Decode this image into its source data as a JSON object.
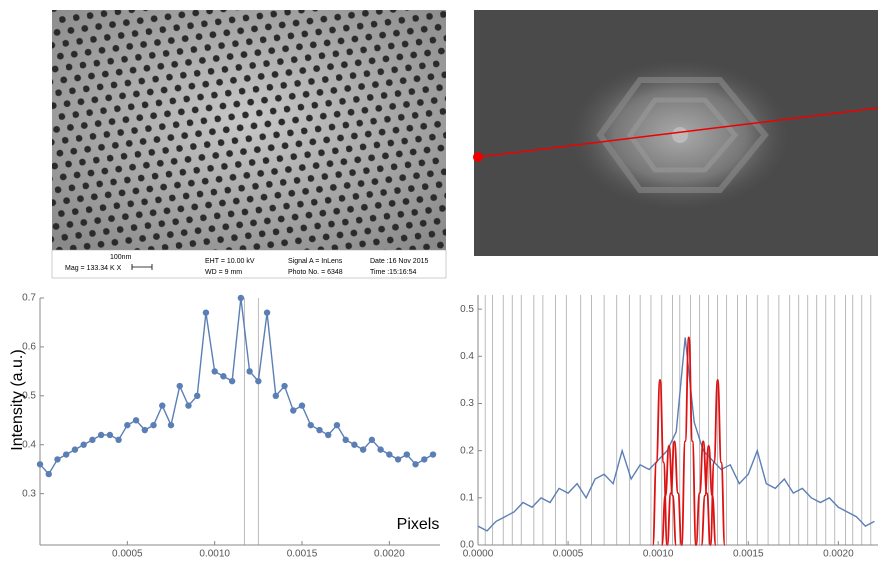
{
  "sem_info": {
    "mag": "Mag = 133.34 K X",
    "scale": "100nm",
    "eht": "EHT = 10.00 kV",
    "wd": "WD =  9 mm",
    "signal": "Signal A = InLens",
    "photo": "Photo No. = 6348",
    "date": "Date :16 Nov 2015",
    "time": "Time :15:16:54"
  },
  "chart_data": [
    {
      "type": "line",
      "y_label": "Intensity (a.u.)",
      "x_label": "Pixels",
      "markers": true,
      "xlim": [
        0,
        0.00229
      ],
      "ylim": [
        0.195,
        0.7
      ],
      "xticks": [
        0.0005,
        {
          "value": 0.001,
          "label": "0.0010"
        },
        0.0015,
        {
          "value": 0.002,
          "label": "0.0020"
        }
      ],
      "yticks": [
        0.3,
        0.4,
        0.5,
        0.6,
        0.7
      ],
      "vlines": [
        0.00117,
        0.00125
      ],
      "x": [
        0,
        5e-05,
        0.0001,
        0.00015,
        0.0002,
        0.00025,
        0.0003,
        0.00035,
        0.0004,
        0.00045,
        0.0005,
        0.00055,
        0.0006,
        0.00065,
        0.0007,
        0.00075,
        0.0008,
        0.00085,
        0.0009,
        0.00095,
        0.001,
        0.00105,
        0.0011,
        0.00115,
        0.0012,
        0.00125,
        0.0013,
        0.00135,
        0.0014,
        0.00145,
        0.0015,
        0.00155,
        0.0016,
        0.00165,
        0.0017,
        0.00175,
        0.0018,
        0.00185,
        0.0019,
        0.00195,
        0.002,
        0.00205,
        0.0021,
        0.00215,
        0.0022,
        0.00225
      ],
      "series": [
        {
          "color": "#5b7fb5",
          "values": [
            0.36,
            0.34,
            0.37,
            0.38,
            0.39,
            0.4,
            0.41,
            0.42,
            0.42,
            0.41,
            0.44,
            0.45,
            0.43,
            0.44,
            0.48,
            0.44,
            0.52,
            0.48,
            0.5,
            0.67,
            0.55,
            0.54,
            0.53,
            0.7,
            0.55,
            0.53,
            0.67,
            0.5,
            0.52,
            0.47,
            0.48,
            0.44,
            0.43,
            0.42,
            0.44,
            0.41,
            0.4,
            0.39,
            0.41,
            0.39,
            0.38,
            0.37,
            0.38,
            0.36,
            0.37,
            0.38
          ]
        }
      ]
    },
    {
      "type": "line",
      "markers": false,
      "xlim": [
        0,
        0.00222
      ],
      "ylim": [
        0,
        0.53
      ],
      "xticks": [
        {
          "value": 0,
          "label": "0.0000"
        },
        0.0005,
        {
          "value": 0.001,
          "label": "0.0010"
        },
        0.0015,
        {
          "value": 0.002,
          "label": "0.0020"
        }
      ],
      "yticks": [
        {
          "value": 0,
          "label": "0.0"
        },
        0.1,
        0.2,
        0.3,
        0.4,
        0.5
      ],
      "vlines": [
        4e-05,
        8e-05,
        0.00014,
        0.00019,
        0.00024,
        0.00031,
        0.00036,
        0.00043,
        0.00049,
        0.00057,
        0.00063,
        0.0007,
        0.00077,
        0.00084,
        0.0009,
        0.00096,
        0.00102,
        0.00108,
        0.00112,
        0.00118,
        0.00123,
        0.00128,
        0.00133,
        0.00138,
        0.00144,
        0.00149,
        0.00155,
        0.00161,
        0.00167,
        0.00173,
        0.00178,
        0.00183,
        0.00188,
        0.00193,
        0.00198,
        0.00204,
        0.00208,
        0.00213,
        0.00218
      ],
      "x": [
        0,
        5e-05,
        0.0001,
        0.00015,
        0.0002,
        0.00025,
        0.0003,
        0.00035,
        0.0004,
        0.00045,
        0.0005,
        0.00055,
        0.0006,
        0.00065,
        0.0007,
        0.00075,
        0.0008,
        0.00085,
        0.0009,
        0.00095,
        0.001,
        0.00105,
        0.0011,
        0.00115,
        0.0012,
        0.00125,
        0.0013,
        0.00135,
        0.0014,
        0.00145,
        0.0015,
        0.00155,
        0.0016,
        0.00165,
        0.0017,
        0.00175,
        0.0018,
        0.00185,
        0.0019,
        0.00195,
        0.002,
        0.00205,
        0.0021,
        0.00215,
        0.0022
      ],
      "series": [
        {
          "color": "#5b7fb5",
          "values": [
            0.04,
            0.03,
            0.05,
            0.06,
            0.07,
            0.09,
            0.08,
            0.1,
            0.09,
            0.12,
            0.11,
            0.13,
            0.1,
            0.14,
            0.15,
            0.13,
            0.2,
            0.14,
            0.17,
            0.16,
            0.18,
            0.2,
            0.24,
            0.44,
            0.26,
            0.2,
            0.18,
            0.16,
            0.17,
            0.13,
            0.15,
            0.2,
            0.13,
            0.12,
            0.14,
            0.11,
            0.12,
            0.1,
            0.09,
            0.1,
            0.08,
            0.07,
            0.06,
            0.04,
            0.05
          ]
        }
      ],
      "peaks": [
        {
          "color": "#dd1111",
          "x": [
            0.00097,
            0.00099,
            0.00101,
            0.00103,
            0.00105
          ],
          "values": [
            0,
            0.175,
            0.35,
            0.175,
            0
          ]
        },
        {
          "color": "#dd1111",
          "x": [
            0.00102,
            0.00104,
            0.00106,
            0.00108,
            0.0011
          ],
          "values": [
            0,
            0.105,
            0.21,
            0.105,
            0
          ]
        },
        {
          "color": "#dd1111",
          "x": [
            0.00105,
            0.00107,
            0.00109,
            0.00111,
            0.00113
          ],
          "values": [
            0,
            0.11,
            0.22,
            0.11,
            0
          ]
        },
        {
          "color": "#dd1111",
          "x": [
            0.00113,
            0.00115,
            0.00117,
            0.00119,
            0.00121
          ],
          "values": [
            0,
            0.22,
            0.44,
            0.22,
            0
          ]
        },
        {
          "color": "#dd1111",
          "x": [
            0.00121,
            0.00123,
            0.00125,
            0.00127,
            0.00129
          ],
          "values": [
            0,
            0.11,
            0.22,
            0.11,
            0
          ]
        },
        {
          "color": "#dd1111",
          "x": [
            0.00124,
            0.00126,
            0.00128,
            0.0013,
            0.00132
          ],
          "values": [
            0,
            0.105,
            0.21,
            0.105,
            0
          ]
        },
        {
          "color": "#dd1111",
          "x": [
            0.00129,
            0.00131,
            0.00133,
            0.00135,
            0.00137
          ],
          "values": [
            0,
            0.175,
            0.35,
            0.175,
            0
          ]
        }
      ]
    }
  ]
}
